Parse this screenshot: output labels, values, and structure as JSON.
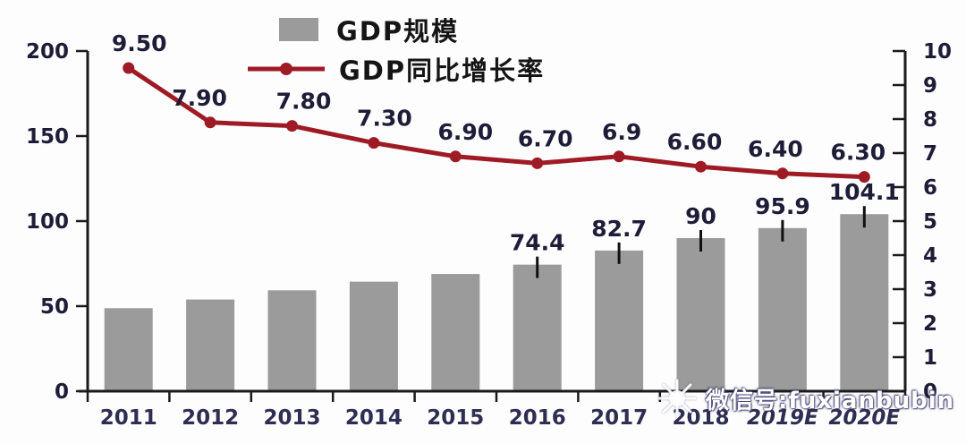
{
  "chart_data": {
    "type": "bar",
    "subtype": "bar-line-combo",
    "categories": [
      "2011",
      "2012",
      "2013",
      "2014",
      "2015",
      "2016",
      "2017",
      "2018",
      "2019E",
      "2020E"
    ],
    "series": [
      {
        "name": "GDP规模",
        "type": "bar",
        "axis": "left",
        "color": "#9b9b9b",
        "values": [
          48.8,
          53.9,
          59.3,
          64.4,
          68.9,
          74.4,
          82.7,
          90,
          95.9,
          104.1
        ],
        "labels": [
          null,
          null,
          null,
          null,
          null,
          "74.4",
          "82.7",
          "90",
          "95.9",
          "104.1"
        ]
      },
      {
        "name": "GDP同比增长率",
        "type": "line",
        "axis": "right",
        "color": "#9e1b26",
        "values": [
          9.5,
          7.9,
          7.8,
          7.3,
          6.9,
          6.7,
          6.9,
          6.6,
          6.4,
          6.3
        ],
        "labels": [
          "9.50",
          "7.90",
          "7.80",
          "7.30",
          "6.90",
          "6.70",
          "6.9",
          "6.60",
          "6.40",
          "6.30"
        ]
      }
    ],
    "left_axis": {
      "min": 0,
      "max": 200,
      "ticks": [
        0,
        50,
        100,
        150,
        200
      ],
      "tick_labels": [
        "0",
        "50",
        "100",
        "150",
        "200"
      ]
    },
    "right_axis": {
      "min": 0,
      "max": 10,
      "ticks": [
        0,
        1,
        2,
        3,
        4,
        5,
        6,
        7,
        8,
        9,
        10
      ],
      "tick_labels": [
        "0",
        "1",
        "2",
        "3",
        "4",
        "5",
        "6",
        "7",
        "8",
        "9",
        "10"
      ]
    },
    "legend": {
      "position": "top-center",
      "items": [
        {
          "label": "GDP规模",
          "swatch": "bar"
        },
        {
          "label": "GDP同比增长率",
          "swatch": "line-marker"
        }
      ]
    },
    "grid": false,
    "title": "",
    "xlabel": "",
    "ylabel": ""
  },
  "watermark": {
    "text": "微信号:fuxianbubin",
    "icon": "snowflake-logo-icon"
  },
  "colors": {
    "bar": "#9b9b9b",
    "line": "#9e1b26",
    "axis": "#1a1a1a",
    "axis_text": "#1d1d38",
    "background": "#fdfdfd",
    "watermark_text": "#ffffff"
  }
}
